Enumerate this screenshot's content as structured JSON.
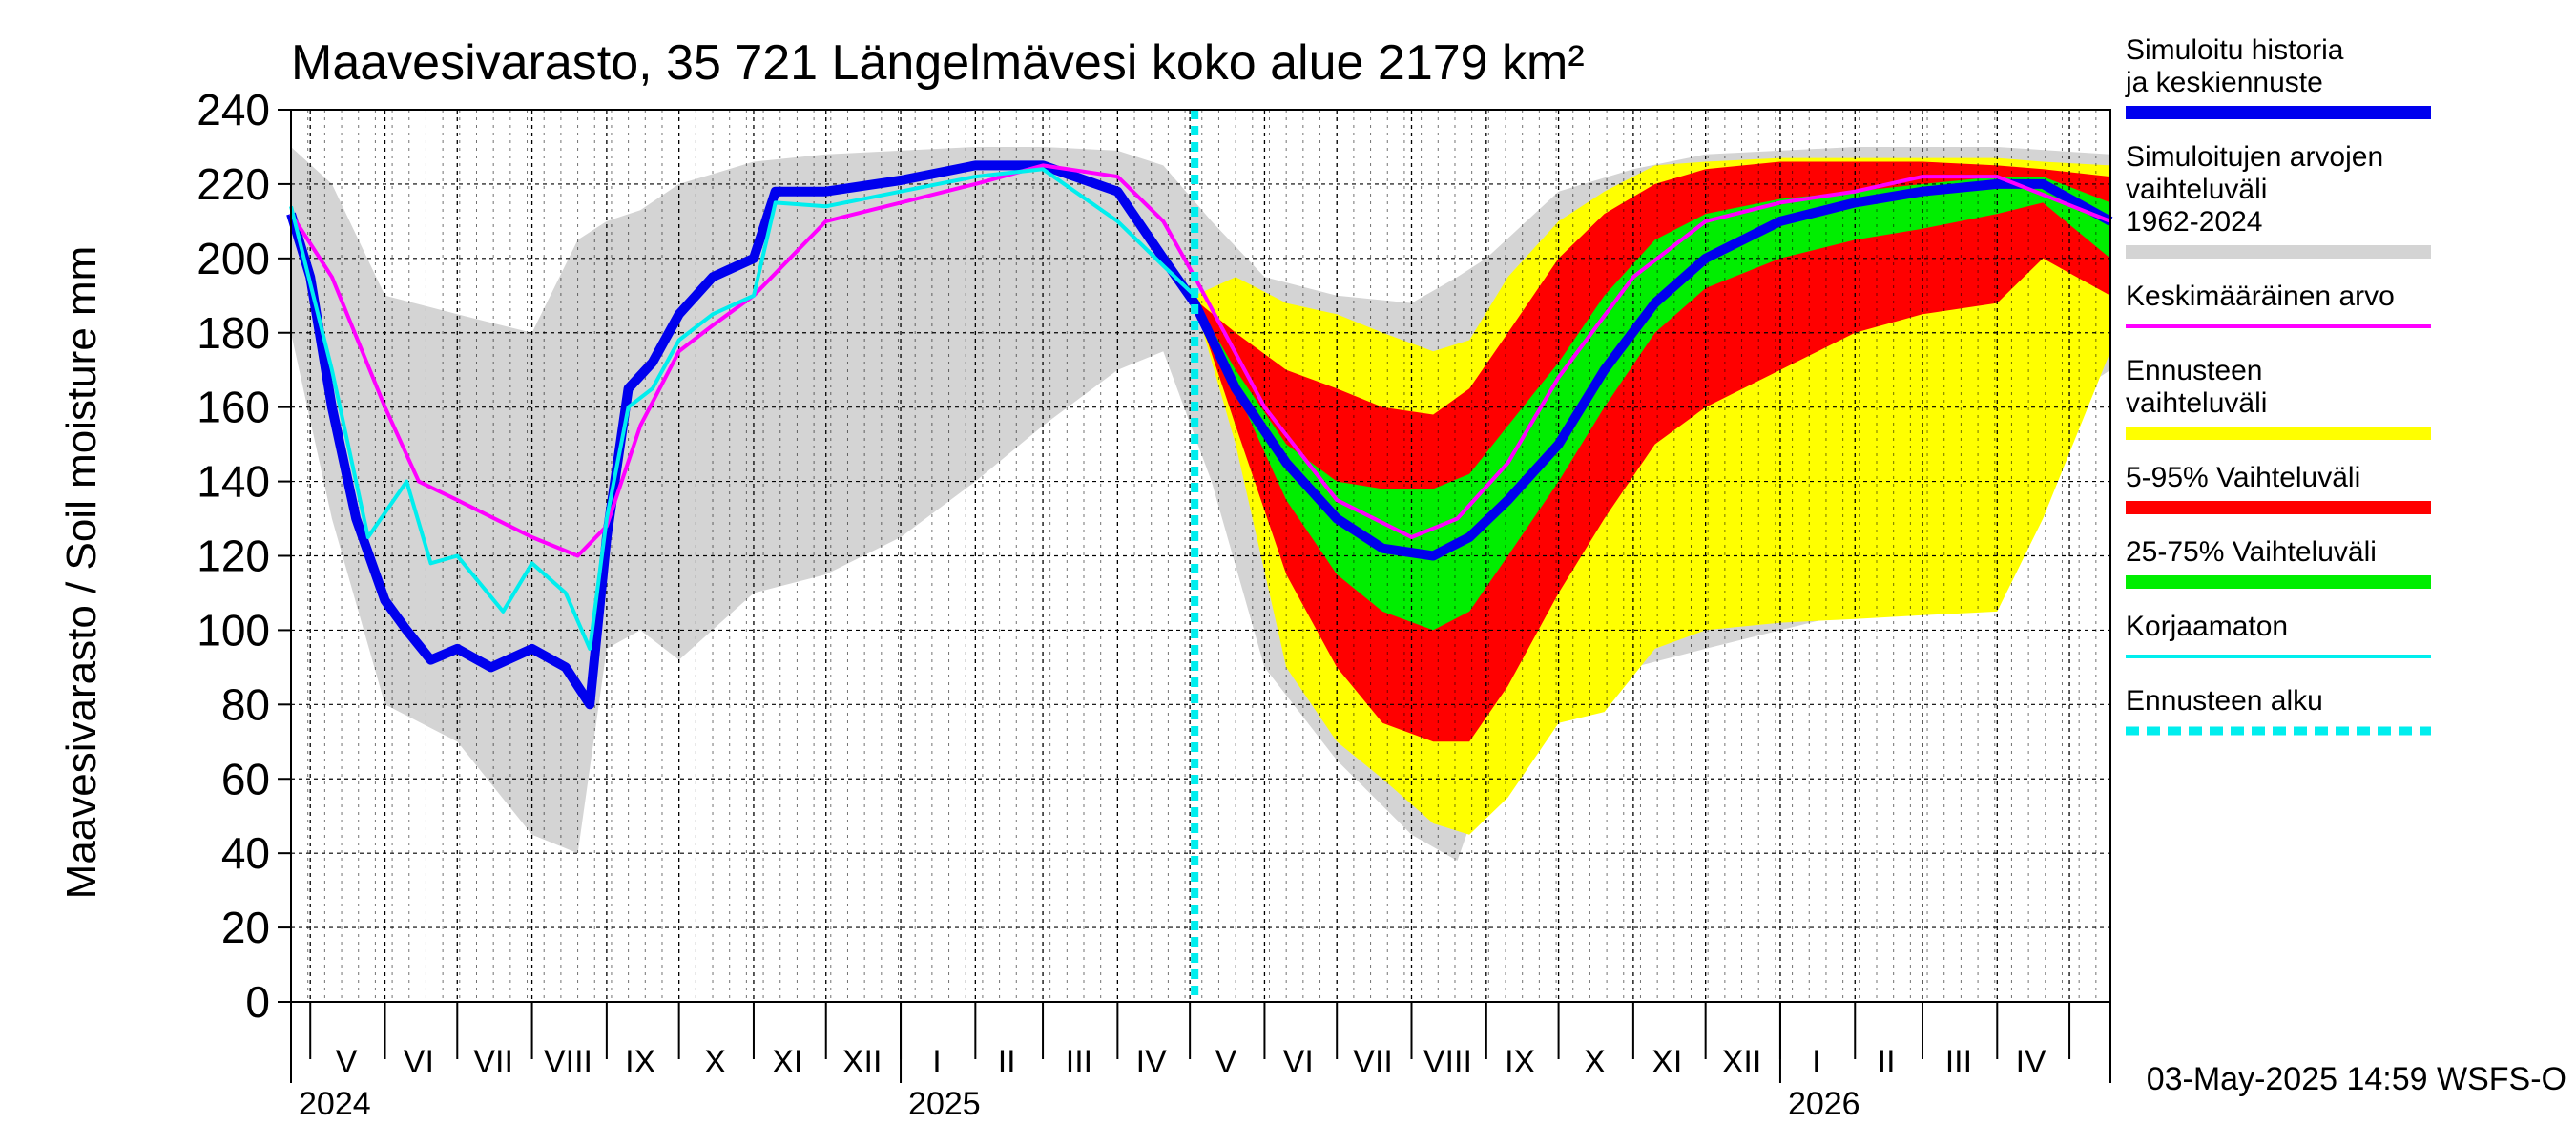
{
  "chart_data": {
    "type": "area",
    "title": "Maavesivarasto, 35 721 Längelmävesi koko alue 2179 km²",
    "ylabel": "Maavesivarasto / Soil moisture   mm",
    "ylim": [
      0,
      240
    ],
    "yticks": [
      "0",
      "20",
      "40",
      "60",
      "80",
      "100",
      "120",
      "140",
      "160",
      "180",
      "200",
      "220",
      "240"
    ],
    "xlim": [
      "2024-04-23",
      "2026-05-18"
    ],
    "forecast_start": "2025-05-03",
    "grid": true,
    "legend_position": "right",
    "month_labels": [
      {
        "label": "V",
        "mid": "2024-05-16"
      },
      {
        "label": "VI",
        "mid": "2024-06-15"
      },
      {
        "label": "VII",
        "mid": "2024-07-16"
      },
      {
        "label": "VIII",
        "mid": "2024-08-16"
      },
      {
        "label": "IX",
        "mid": "2024-09-15"
      },
      {
        "label": "X",
        "mid": "2024-10-16"
      },
      {
        "label": "XI",
        "mid": "2024-11-15"
      },
      {
        "label": "XII",
        "mid": "2024-12-16"
      },
      {
        "label": "I",
        "mid": "2025-01-16"
      },
      {
        "label": "II",
        "mid": "2025-02-14"
      },
      {
        "label": "III",
        "mid": "2025-03-16"
      },
      {
        "label": "IV",
        "mid": "2025-04-15"
      },
      {
        "label": "V",
        "mid": "2025-05-16"
      },
      {
        "label": "VI",
        "mid": "2025-06-15"
      },
      {
        "label": "VII",
        "mid": "2025-07-16"
      },
      {
        "label": "VIII",
        "mid": "2025-08-16"
      },
      {
        "label": "IX",
        "mid": "2025-09-15"
      },
      {
        "label": "X",
        "mid": "2025-10-16"
      },
      {
        "label": "XI",
        "mid": "2025-11-15"
      },
      {
        "label": "XII",
        "mid": "2025-12-16"
      },
      {
        "label": "I",
        "mid": "2026-01-16"
      },
      {
        "label": "II",
        "mid": "2026-02-14"
      },
      {
        "label": "III",
        "mid": "2026-03-16"
      },
      {
        "label": "IV",
        "mid": "2026-04-15"
      }
    ],
    "month_boundaries": [
      "2024-05-01",
      "2024-06-01",
      "2024-07-01",
      "2024-08-01",
      "2024-09-01",
      "2024-10-01",
      "2024-11-01",
      "2024-12-01",
      "2025-01-01",
      "2025-02-01",
      "2025-03-01",
      "2025-04-01",
      "2025-05-01",
      "2025-06-01",
      "2025-07-01",
      "2025-08-01",
      "2025-09-01",
      "2025-10-01",
      "2025-11-01",
      "2025-12-01",
      "2026-01-01",
      "2026-02-01",
      "2026-03-01",
      "2026-04-01",
      "2026-05-01"
    ],
    "year_boundaries": [
      "2025-01-01",
      "2026-01-01"
    ],
    "year_labels": [
      {
        "label": "2024",
        "at": "2024-04-23"
      },
      {
        "label": "2025",
        "at": "2025-01-01"
      },
      {
        "label": "2026",
        "at": "2026-01-01"
      }
    ],
    "series": [
      {
        "name": "Simuloitujen arvojen vaihteluväli 1962-2024",
        "kind": "band",
        "color": "#d4d4d4",
        "x": [
          "2024-04-23",
          "2024-05-10",
          "2024-06-01",
          "2024-07-01",
          "2024-08-01",
          "2024-08-20",
          "2024-09-01",
          "2024-09-15",
          "2024-10-01",
          "2024-11-01",
          "2024-12-01",
          "2025-01-01",
          "2025-02-01",
          "2025-03-01",
          "2025-04-01",
          "2025-04-20",
          "2025-05-10",
          "2025-06-01",
          "2025-07-01",
          "2025-08-01",
          "2025-08-20",
          "2025-09-01",
          "2025-10-01",
          "2025-11-01",
          "2025-12-01",
          "2026-01-01",
          "2026-02-01",
          "2026-03-01",
          "2026-04-01",
          "2026-05-18"
        ],
        "high": [
          230,
          220,
          190,
          185,
          180,
          205,
          210,
          213,
          220,
          226,
          228,
          229,
          230,
          230,
          229,
          225,
          210,
          195,
          190,
          188,
          195,
          200,
          218,
          224,
          228,
          229,
          230,
          230,
          230,
          228
        ],
        "low": [
          180,
          130,
          80,
          70,
          45,
          40,
          95,
          100,
          92,
          110,
          115,
          125,
          140,
          155,
          170,
          175,
          140,
          90,
          65,
          45,
          38,
          60,
          80,
          90,
          95,
          100,
          105,
          110,
          150,
          170
        ]
      },
      {
        "name": "Ennusteen vaihteluväli",
        "kind": "band",
        "color": "#ffff00",
        "x": [
          "2025-05-03",
          "2025-05-20",
          "2025-06-10",
          "2025-07-01",
          "2025-07-20",
          "2025-08-10",
          "2025-08-25",
          "2025-09-10",
          "2025-10-01",
          "2025-10-20",
          "2025-11-10",
          "2025-12-01",
          "2026-01-01",
          "2026-02-01",
          "2026-03-01",
          "2026-04-01",
          "2026-04-20",
          "2026-05-18"
        ],
        "high": [
          190,
          195,
          188,
          185,
          180,
          175,
          178,
          195,
          210,
          218,
          225,
          226,
          227,
          227,
          227,
          227,
          226,
          225
        ],
        "low": [
          188,
          150,
          90,
          70,
          60,
          48,
          45,
          55,
          75,
          78,
          95,
          100,
          102,
          103,
          104,
          105,
          130,
          175
        ]
      },
      {
        "name": "5-95% Vaihteluväli",
        "kind": "band",
        "color": "#ff0000",
        "x": [
          "2025-05-03",
          "2025-05-20",
          "2025-06-10",
          "2025-07-01",
          "2025-07-20",
          "2025-08-10",
          "2025-08-25",
          "2025-09-10",
          "2025-10-01",
          "2025-10-20",
          "2025-11-10",
          "2025-12-01",
          "2026-01-01",
          "2026-02-01",
          "2026-03-01",
          "2026-04-01",
          "2026-04-20",
          "2026-05-18"
        ],
        "high": [
          189,
          180,
          170,
          165,
          160,
          158,
          165,
          180,
          200,
          212,
          220,
          224,
          226,
          226,
          226,
          225,
          224,
          222
        ],
        "low": [
          188,
          155,
          115,
          90,
          75,
          70,
          70,
          85,
          110,
          130,
          150,
          160,
          170,
          180,
          185,
          188,
          200,
          190
        ]
      },
      {
        "name": "25-75% Vaihteluväli",
        "kind": "band",
        "color": "#00ee00",
        "x": [
          "2025-05-03",
          "2025-05-20",
          "2025-06-10",
          "2025-07-01",
          "2025-07-20",
          "2025-08-10",
          "2025-08-25",
          "2025-09-10",
          "2025-10-01",
          "2025-10-20",
          "2025-11-10",
          "2025-12-01",
          "2026-01-01",
          "2026-02-01",
          "2026-03-01",
          "2026-04-01",
          "2026-04-20",
          "2026-05-18"
        ],
        "high": [
          189,
          170,
          150,
          140,
          138,
          138,
          142,
          155,
          172,
          190,
          205,
          212,
          216,
          218,
          220,
          222,
          222,
          215
        ],
        "low": [
          188,
          165,
          135,
          115,
          105,
          100,
          105,
          120,
          140,
          160,
          180,
          192,
          200,
          205,
          208,
          212,
          215,
          200
        ]
      },
      {
        "name": "Simuloitu historia ja keskiennuste",
        "kind": "line",
        "color": "#0000ee",
        "x": [
          "2024-04-23",
          "2024-05-01",
          "2024-05-10",
          "2024-05-20",
          "2024-06-01",
          "2024-06-10",
          "2024-06-20",
          "2024-07-01",
          "2024-07-15",
          "2024-08-01",
          "2024-08-15",
          "2024-08-25",
          "2024-09-01",
          "2024-09-10",
          "2024-09-20",
          "2024-10-01",
          "2024-10-15",
          "2024-11-01",
          "2024-11-10",
          "2024-12-01",
          "2025-01-01",
          "2025-02-01",
          "2025-03-01",
          "2025-04-01",
          "2025-04-20",
          "2025-05-03",
          "2025-05-20",
          "2025-06-10",
          "2025-07-01",
          "2025-07-20",
          "2025-08-10",
          "2025-08-25",
          "2025-09-10",
          "2025-10-01",
          "2025-10-20",
          "2025-11-10",
          "2025-12-01",
          "2026-01-01",
          "2026-02-01",
          "2026-03-01",
          "2026-04-01",
          "2026-04-20",
          "2026-05-18"
        ],
        "y": [
          212,
          195,
          160,
          130,
          108,
          100,
          92,
          95,
          90,
          95,
          90,
          80,
          125,
          165,
          172,
          185,
          195,
          200,
          218,
          218,
          221,
          225,
          225,
          218,
          200,
          188,
          165,
          145,
          130,
          122,
          120,
          125,
          135,
          150,
          170,
          188,
          200,
          210,
          215,
          218,
          220,
          220,
          210
        ]
      },
      {
        "name": "Keskimääräinen arvo",
        "kind": "line",
        "color": "#ff00ff",
        "x": [
          "2024-04-23",
          "2024-05-10",
          "2024-06-01",
          "2024-06-15",
          "2024-07-01",
          "2024-08-01",
          "2024-08-20",
          "2024-09-01",
          "2024-09-15",
          "2024-10-01",
          "2024-10-15",
          "2024-11-01",
          "2024-12-01",
          "2025-01-01",
          "2025-02-01",
          "2025-03-01",
          "2025-04-01",
          "2025-04-20",
          "2025-05-03",
          "2025-06-01",
          "2025-07-01",
          "2025-08-01",
          "2025-08-20",
          "2025-09-10",
          "2025-10-01",
          "2025-11-01",
          "2025-12-01",
          "2026-01-01",
          "2026-02-01",
          "2026-03-01",
          "2026-04-01",
          "2026-05-18"
        ],
        "y": [
          212,
          195,
          160,
          140,
          135,
          125,
          120,
          128,
          155,
          175,
          182,
          190,
          210,
          215,
          220,
          225,
          222,
          210,
          195,
          160,
          135,
          125,
          130,
          145,
          168,
          195,
          210,
          215,
          218,
          222,
          222,
          210
        ]
      },
      {
        "name": "Korjaamaton",
        "kind": "line",
        "color": "#00eeee",
        "x": [
          "2024-04-23",
          "2024-05-10",
          "2024-05-25",
          "2024-06-10",
          "2024-06-20",
          "2024-07-01",
          "2024-07-20",
          "2024-08-01",
          "2024-08-15",
          "2024-08-25",
          "2024-09-01",
          "2024-09-10",
          "2024-09-20",
          "2024-10-01",
          "2024-10-15",
          "2024-11-01",
          "2024-11-10",
          "2024-12-01",
          "2025-01-01",
          "2025-02-01",
          "2025-03-01",
          "2025-04-01",
          "2025-04-20",
          "2025-05-03"
        ],
        "y": [
          214,
          170,
          125,
          140,
          118,
          120,
          105,
          118,
          110,
          95,
          130,
          160,
          165,
          178,
          185,
          190,
          215,
          214,
          218,
          222,
          224,
          210,
          198,
          190
        ]
      }
    ],
    "legend": [
      {
        "label": "Simuloitu historia ja keskiennuste",
        "color": "#0000ee",
        "style": "thick"
      },
      {
        "label": "Simuloitujen arvojen vaihteluväli 1962-2024",
        "color": "#d4d4d4",
        "style": "thick"
      },
      {
        "label": "Keskimääräinen arvo",
        "color": "#ff00ff",
        "style": "thin"
      },
      {
        "label": "Ennusteen vaihteluväli",
        "color": "#ffff00",
        "style": "thick"
      },
      {
        "label": "5-95% Vaihteluväli",
        "color": "#ff0000",
        "style": "thick"
      },
      {
        "label": "25-75% Vaihteluväli",
        "color": "#00ee00",
        "style": "thick"
      },
      {
        "label": "Korjaamaton",
        "color": "#00eeee",
        "style": "thin"
      },
      {
        "label": "Ennusteen alku",
        "color": "#00eeee",
        "style": "dashed"
      }
    ],
    "footer": "03-May-2025 14:59 WSFS-O"
  }
}
